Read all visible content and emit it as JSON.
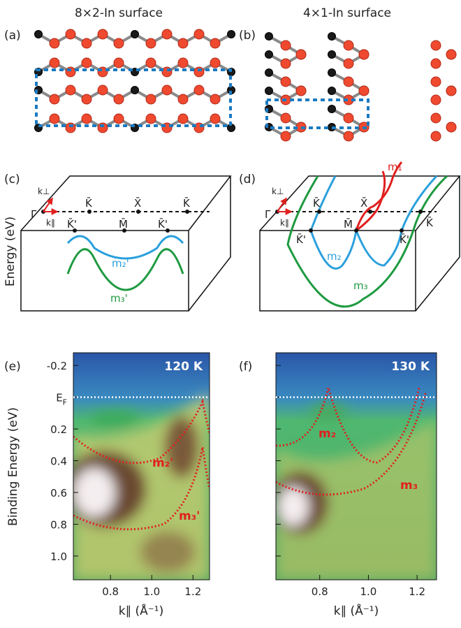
{
  "titles": [
    "8×2-In surface",
    "4×1-In surface"
  ],
  "panel_labels": [
    "(a)",
    "(b)",
    "(c)",
    "(d)",
    "(e)",
    "(f)"
  ],
  "band_c": {
    "gamma": "Γ̄",
    "k_perp": "k⊥",
    "k_par": "k∥",
    "K": "K̄",
    "X": "X̄",
    "Kp": "K̄'",
    "M": "M̄",
    "bands": [
      "m₂'",
      "m₃'"
    ],
    "ylabel": "Energy (eV)"
  },
  "band_d": {
    "gamma": "Γ̄",
    "k_perp": "k⊥",
    "k_par": "k∥",
    "K": "K̄",
    "X": "X̄",
    "Kp": "K̄'",
    "M": "M̄",
    "bands": [
      "m₁",
      "m₂",
      "m₃"
    ]
  },
  "arpes": {
    "ylabel": "Binding Energy (eV)",
    "xlabel": "k∥ (Å⁻¹)",
    "xlim": [
      0.62,
      1.28
    ],
    "ylim": [
      -0.28,
      1.15
    ],
    "xticks": [
      0.8,
      {
        "value": 1,
        "label": "1.0"
      },
      1.2
    ],
    "yticks": [
      -0.2,
      {
        "value": 0,
        "label": "E",
        "sub": "F"
      },
      0.2,
      0.4,
      0.6,
      0.8,
      {
        "value": 1,
        "label": "1.0"
      }
    ],
    "panels": [
      {
        "temperature": "120 K",
        "bands": [
          "m₂'",
          "m₃'"
        ]
      },
      {
        "temperature": "130 K",
        "bands": [
          "m₂",
          "m₃"
        ]
      }
    ]
  }
}
